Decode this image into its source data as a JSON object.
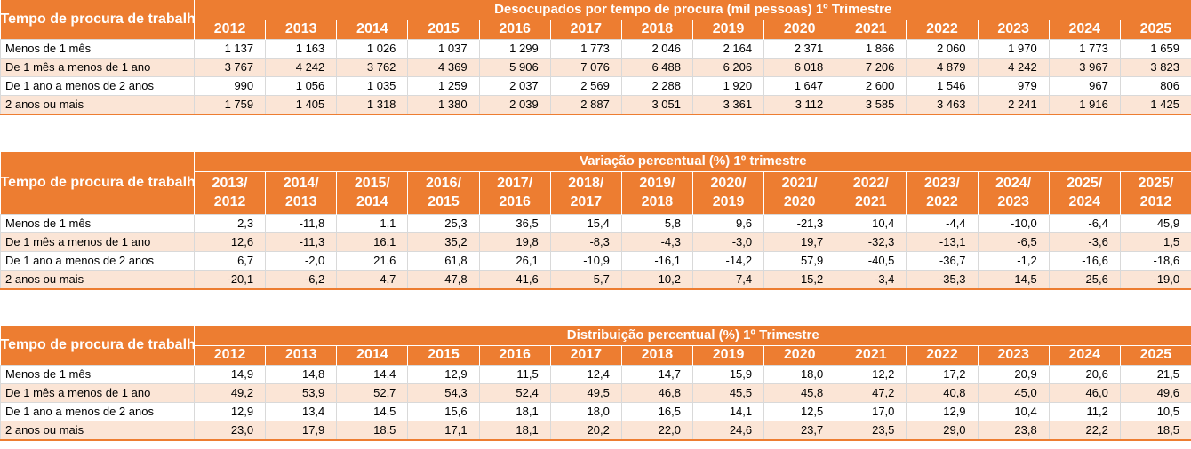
{
  "row_label_header": "Tempo de procura de trabalho",
  "categories": [
    "Menos de 1 mês",
    "De 1 mês a menos de 1 ano",
    "De 1 ano a menos de 2 anos",
    "2 anos ou mais"
  ],
  "colors": {
    "header_bg": "#ed7d31",
    "header_text": "#ffffff",
    "row_alt_bg": "#fbe5d6",
    "row_bg": "#ffffff"
  },
  "tables": [
    {
      "title": "Desocupados por tempo de procura (mil pessoas) 1º Trimestre",
      "columns": [
        [
          "2012"
        ],
        [
          "2013"
        ],
        [
          "2014"
        ],
        [
          "2015"
        ],
        [
          "2016"
        ],
        [
          "2017"
        ],
        [
          "2018"
        ],
        [
          "2019"
        ],
        [
          "2020"
        ],
        [
          "2021"
        ],
        [
          "2022"
        ],
        [
          "2023"
        ],
        [
          "2024"
        ],
        [
          "2025"
        ]
      ],
      "rows": [
        [
          "1 137",
          "1 163",
          "1 026",
          "1 037",
          "1 299",
          "1 773",
          "2 046",
          "2 164",
          "2 371",
          "1 866",
          "2 060",
          "1 970",
          "1 773",
          "1 659"
        ],
        [
          "3 767",
          "4 242",
          "3 762",
          "4 369",
          "5 906",
          "7 076",
          "6 488",
          "6 206",
          "6 018",
          "7 206",
          "4 879",
          "4 242",
          "3 967",
          "3 823"
        ],
        [
          "990",
          "1 056",
          "1 035",
          "1 259",
          "2 037",
          "2 569",
          "2 288",
          "1 920",
          "1 647",
          "2 600",
          "1 546",
          "979",
          "967",
          "806"
        ],
        [
          "1 759",
          "1 405",
          "1 318",
          "1 380",
          "2 039",
          "2 887",
          "3 051",
          "3 361",
          "3 112",
          "3 585",
          "3 463",
          "2 241",
          "1 916",
          "1 425"
        ]
      ]
    },
    {
      "title": "Variação percentual (%) 1º trimestre",
      "columns": [
        [
          "2013/",
          "2012"
        ],
        [
          "2014/",
          "2013"
        ],
        [
          "2015/",
          "2014"
        ],
        [
          "2016/",
          "2015"
        ],
        [
          "2017/",
          "2016"
        ],
        [
          "2018/",
          "2017"
        ],
        [
          "2019/",
          "2018"
        ],
        [
          "2020/",
          "2019"
        ],
        [
          "2021/",
          "2020"
        ],
        [
          "2022/",
          "2021"
        ],
        [
          "2023/",
          "2022"
        ],
        [
          "2024/",
          "2023"
        ],
        [
          "2025/",
          "2024"
        ],
        [
          "2025/",
          "2012"
        ]
      ],
      "rows": [
        [
          "2,3",
          "-11,8",
          "1,1",
          "25,3",
          "36,5",
          "15,4",
          "5,8",
          "9,6",
          "-21,3",
          "10,4",
          "-4,4",
          "-10,0",
          "-6,4",
          "45,9"
        ],
        [
          "12,6",
          "-11,3",
          "16,1",
          "35,2",
          "19,8",
          "-8,3",
          "-4,3",
          "-3,0",
          "19,7",
          "-32,3",
          "-13,1",
          "-6,5",
          "-3,6",
          "1,5"
        ],
        [
          "6,7",
          "-2,0",
          "21,6",
          "61,8",
          "26,1",
          "-10,9",
          "-16,1",
          "-14,2",
          "57,9",
          "-40,5",
          "-36,7",
          "-1,2",
          "-16,6",
          "-18,6"
        ],
        [
          "-20,1",
          "-6,2",
          "4,7",
          "47,8",
          "41,6",
          "5,7",
          "10,2",
          "-7,4",
          "15,2",
          "-3,4",
          "-35,3",
          "-14,5",
          "-25,6",
          "-19,0"
        ]
      ]
    },
    {
      "title": "Distribuição percentual  (%) 1º Trimestre",
      "columns": [
        [
          "2012"
        ],
        [
          "2013"
        ],
        [
          "2014"
        ],
        [
          "2015"
        ],
        [
          "2016"
        ],
        [
          "2017"
        ],
        [
          "2018"
        ],
        [
          "2019"
        ],
        [
          "2020"
        ],
        [
          "2021"
        ],
        [
          "2022"
        ],
        [
          "2023"
        ],
        [
          "2024"
        ],
        [
          "2025"
        ]
      ],
      "rows": [
        [
          "14,9",
          "14,8",
          "14,4",
          "12,9",
          "11,5",
          "12,4",
          "14,7",
          "15,9",
          "18,0",
          "12,2",
          "17,2",
          "20,9",
          "20,6",
          "21,5"
        ],
        [
          "49,2",
          "53,9",
          "52,7",
          "54,3",
          "52,4",
          "49,5",
          "46,8",
          "45,5",
          "45,8",
          "47,2",
          "40,8",
          "45,0",
          "46,0",
          "49,6"
        ],
        [
          "12,9",
          "13,4",
          "14,5",
          "15,6",
          "18,1",
          "18,0",
          "16,5",
          "14,1",
          "12,5",
          "17,0",
          "12,9",
          "10,4",
          "11,2",
          "10,5"
        ],
        [
          "23,0",
          "17,9",
          "18,5",
          "17,1",
          "18,1",
          "20,2",
          "22,0",
          "24,6",
          "23,7",
          "23,5",
          "29,0",
          "23,8",
          "22,2",
          "18,5"
        ]
      ]
    }
  ]
}
